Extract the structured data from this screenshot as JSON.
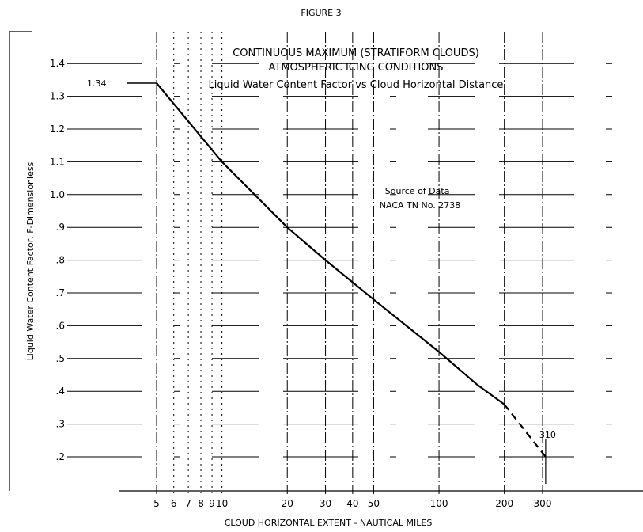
{
  "figure_label": "FIGURE 3",
  "chart_data": {
    "type": "line",
    "title": "CONTINUOUS MAXIMUM (STRATIFORM CLOUDS)",
    "subtitle": "ATMOSPHERIC ICING CONDITIONS",
    "caption": "Liquid Water Content Factor vs Cloud Horizontal Distance",
    "xlabel": "CLOUD HORIZONTAL EXTENT - NAUTICAL MILES",
    "ylabel": "Liquid Water Content Factor, F-Dimensionless",
    "x_scale": "log",
    "xlim": [
      4,
      500
    ],
    "ylim": [
      0.1,
      1.5
    ],
    "x_ticks": [
      5,
      6,
      7,
      8,
      9,
      10,
      20,
      30,
      40,
      50,
      100,
      200,
      300
    ],
    "x_tick_labels": [
      "5",
      "6",
      "7",
      "8",
      "9",
      "10",
      "20",
      "30",
      "40",
      "50",
      "100",
      "200",
      "300"
    ],
    "y_ticks": [
      0.2,
      0.3,
      0.4,
      0.5,
      0.6,
      0.7,
      0.8,
      0.9,
      1.0,
      1.1,
      1.2,
      1.3,
      1.4
    ],
    "y_tick_labels": [
      ".2",
      ".3",
      ".4",
      ".5",
      ".6",
      ".7",
      ".8",
      ".9",
      "1.0",
      "1.1",
      "1.2",
      "1.3",
      "1.4"
    ],
    "grid": true,
    "series": [
      {
        "style": "solid",
        "x": [
          5,
          10,
          20,
          30,
          50,
          100,
          150,
          200
        ],
        "y": [
          1.34,
          1.1,
          0.9,
          0.8,
          0.68,
          0.52,
          0.42,
          0.36
        ]
      },
      {
        "style": "dashed",
        "x": [
          200,
          310
        ],
        "y": [
          0.36,
          0.2
        ]
      }
    ],
    "annotations": [
      {
        "text": "1.34",
        "x": 5,
        "y": 1.34
      },
      {
        "text": "310",
        "x": 310,
        "y": 0.2
      },
      {
        "text": "Source of Data",
        "x": 55,
        "y": 1.0
      },
      {
        "text": "NACA TN No. 2738",
        "x": 55,
        "y": 0.975
      }
    ]
  }
}
